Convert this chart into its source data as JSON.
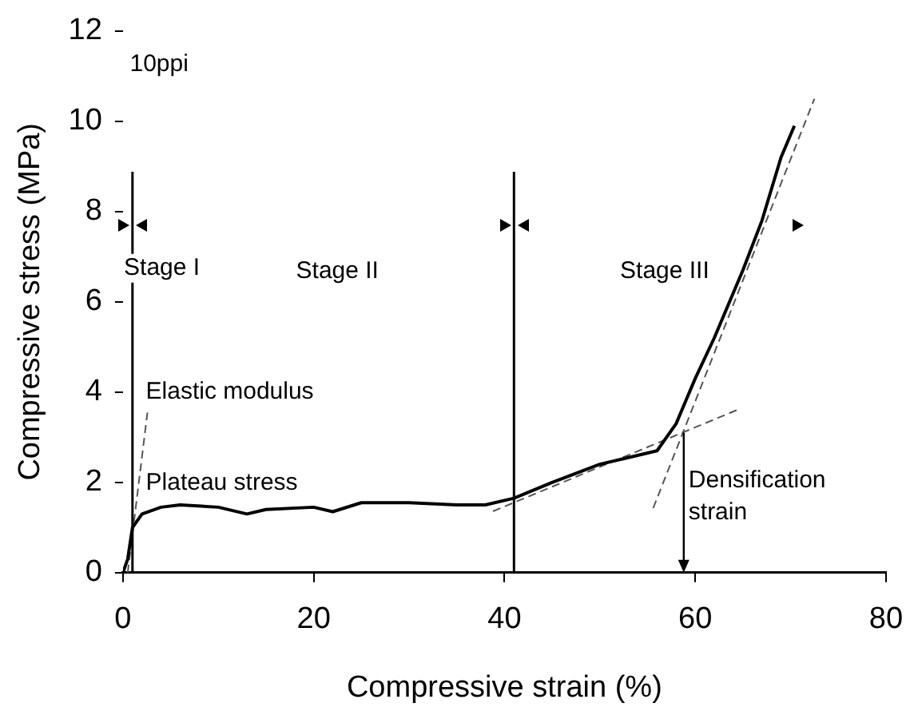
{
  "chart_data": {
    "type": "line",
    "xlabel": "Compressive strain (%)",
    "ylabel": "Compressive stress (MPa)",
    "xlim": [
      0,
      80
    ],
    "xticks": [
      0,
      20,
      40,
      60,
      80
    ],
    "ylim": [
      0,
      12
    ],
    "yticks": [
      0,
      2,
      4,
      6,
      8,
      10,
      12
    ],
    "grid": false,
    "legend": false,
    "marker": "none",
    "series": [
      {
        "color": "#000000",
        "line_style": "solid",
        "x": [
          0,
          0.5,
          1,
          2,
          4,
          6,
          10,
          13,
          15,
          20,
          22,
          25,
          30,
          35,
          38,
          41,
          45,
          50,
          53,
          56,
          58,
          60,
          62,
          65,
          67,
          69,
          70.4
        ],
        "values": [
          0,
          0.3,
          1.0,
          1.3,
          1.45,
          1.5,
          1.45,
          1.3,
          1.4,
          1.45,
          1.35,
          1.55,
          1.55,
          1.5,
          1.5,
          1.65,
          2.0,
          2.4,
          2.55,
          2.7,
          3.3,
          4.3,
          5.2,
          6.7,
          7.8,
          9.2,
          9.9
        ]
      },
      {
        "color": "#555555",
        "line_style": "dashed",
        "x": [
          0.5,
          2.6
        ],
        "values": [
          0,
          3.6
        ]
      },
      {
        "color": "#555555",
        "line_style": "dashed",
        "x": [
          38.8,
          64.8
        ],
        "values": [
          1.36,
          3.64
        ]
      },
      {
        "color": "#555555",
        "line_style": "dashed",
        "x": [
          55.6,
          72.5
        ],
        "values": [
          1.43,
          10.5
        ]
      }
    ],
    "ref_lines": [
      {
        "axis": "x",
        "value": 1,
        "color": "#000000"
      },
      {
        "axis": "x",
        "value": 41,
        "color": "#000000"
      }
    ],
    "annotations": [
      "10ppi",
      "Stage I",
      "Stage II",
      "Stage III",
      "Elastic modulus",
      "Plateau stress",
      {
        "text": "Densification strain",
        "x": 58.8,
        "y": 3.1
      }
    ]
  }
}
